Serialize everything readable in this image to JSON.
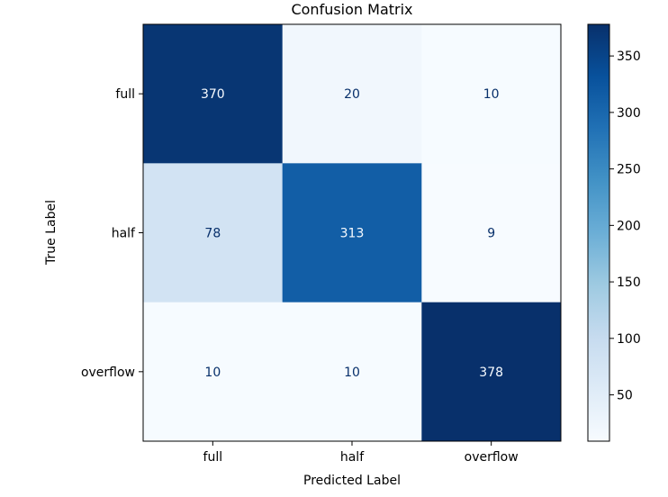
{
  "chart_data": {
    "type": "heatmap",
    "title": "Confusion Matrix",
    "xlabel": "Predicted Label",
    "ylabel": "True Label",
    "x_categories": [
      "full",
      "half",
      "overflow"
    ],
    "y_categories": [
      "full",
      "half",
      "overflow"
    ],
    "values": [
      [
        370,
        20,
        10
      ],
      [
        78,
        313,
        9
      ],
      [
        10,
        10,
        378
      ]
    ],
    "colormap": "Blues",
    "colorbar": {
      "min": 9,
      "max": 378,
      "ticks": [
        50,
        100,
        150,
        200,
        250,
        300,
        350
      ]
    },
    "grid": false
  }
}
